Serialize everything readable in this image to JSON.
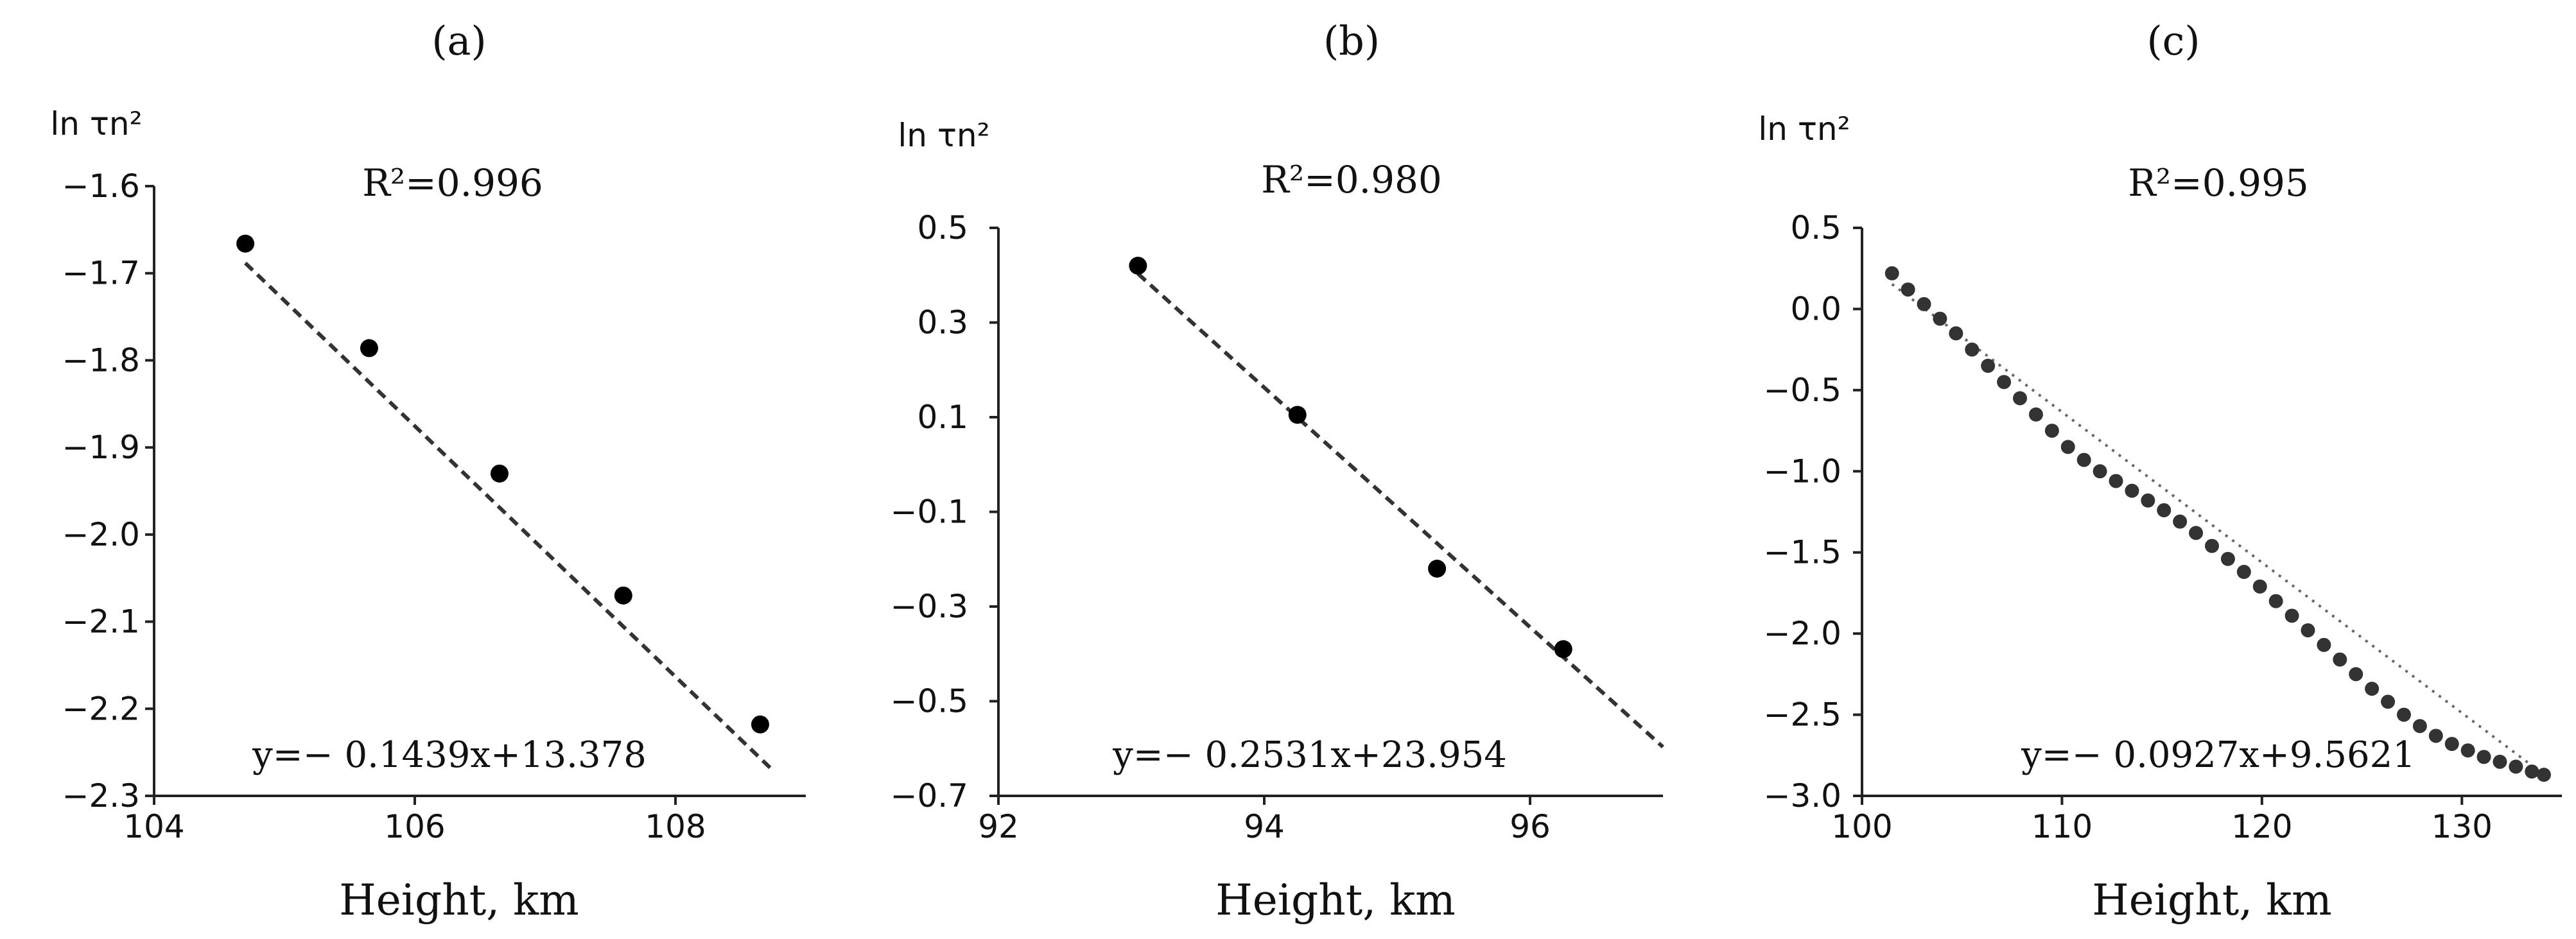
{
  "chart_data": [
    {
      "type": "scatter",
      "panel_label": "(a)",
      "xlabel": "Height, km",
      "ylabel": "ln τn²",
      "xlim": [
        104,
        109
      ],
      "ylim": [
        -2.3,
        -1.6
      ],
      "x_ticks": [
        104,
        106,
        108
      ],
      "x_tick_labels": [
        "104",
        "106",
        "108"
      ],
      "y_ticks": [
        -1.6,
        -1.7,
        -1.8,
        -1.9,
        -2.0,
        -2.1,
        -2.2,
        -2.3
      ],
      "y_tick_labels": [
        "−1.6",
        "−1.7",
        "−1.8",
        "−1.9",
        "−2.0",
        "−2.1",
        "−2.2",
        "−2.3"
      ],
      "points": [
        {
          "x": 104.7,
          "y": -1.666
        },
        {
          "x": 105.65,
          "y": -1.786
        },
        {
          "x": 106.65,
          "y": -1.93
        },
        {
          "x": 107.6,
          "y": -2.07
        },
        {
          "x": 108.65,
          "y": -2.218
        }
      ],
      "fit": {
        "slope": -0.1439,
        "intercept": 13.378,
        "x_range": [
          104.7,
          108.75
        ],
        "style": "dashed"
      },
      "r2_text": "R²=0.996",
      "equation_text": "y=− 0.1439x+13.378"
    },
    {
      "type": "scatter",
      "panel_label": "(b)",
      "xlabel": "Height, km",
      "ylabel": "ln τn²",
      "xlim": [
        92,
        97
      ],
      "ylim": [
        -0.7,
        0.5
      ],
      "x_ticks": [
        92,
        94,
        96
      ],
      "x_tick_labels": [
        "92",
        "94",
        "96"
      ],
      "y_ticks": [
        0.5,
        0.3,
        0.1,
        -0.1,
        -0.3,
        -0.5,
        -0.7
      ],
      "y_tick_labels": [
        "0.5",
        "0.3",
        "0.1",
        "−0.1",
        "−0.3",
        "−0.5",
        "−0.7"
      ],
      "points": [
        {
          "x": 93.05,
          "y": 0.42
        },
        {
          "x": 94.25,
          "y": 0.105
        },
        {
          "x": 95.3,
          "y": -0.22
        },
        {
          "x": 96.25,
          "y": -0.39
        }
      ],
      "fit": {
        "slope": -0.2531,
        "intercept": 23.954,
        "x_range": [
          93.05,
          97.0
        ],
        "style": "dashed"
      },
      "r2_text": "R²=0.980",
      "equation_text": "y=− 0.2531x+23.954"
    },
    {
      "type": "scatter",
      "panel_label": "(c)",
      "xlabel": "Height, km",
      "ylabel": "ln τn²",
      "xlim": [
        100,
        135
      ],
      "ylim": [
        -3.0,
        0.5
      ],
      "x_ticks": [
        100,
        110,
        120,
        130
      ],
      "x_tick_labels": [
        "100",
        "110",
        "120",
        "130"
      ],
      "y_ticks": [
        0.5,
        0.0,
        -0.5,
        -1.0,
        -1.5,
        -2.0,
        -2.5,
        -3.0
      ],
      "y_tick_labels": [
        "0.5",
        "0.0",
        "−0.5",
        "−1.0",
        "−1.5",
        "−2.0",
        "−2.5",
        "−3.0"
      ],
      "points": [
        {
          "x": 101.5,
          "y": 0.22
        },
        {
          "x": 102.3,
          "y": 0.12
        },
        {
          "x": 103.1,
          "y": 0.03
        },
        {
          "x": 103.9,
          "y": -0.06
        },
        {
          "x": 104.7,
          "y": -0.15
        },
        {
          "x": 105.5,
          "y": -0.25
        },
        {
          "x": 106.3,
          "y": -0.35
        },
        {
          "x": 107.1,
          "y": -0.45
        },
        {
          "x": 107.9,
          "y": -0.55
        },
        {
          "x": 108.7,
          "y": -0.65
        },
        {
          "x": 109.5,
          "y": -0.75
        },
        {
          "x": 110.3,
          "y": -0.85
        },
        {
          "x": 111.1,
          "y": -0.93
        },
        {
          "x": 111.9,
          "y": -1.0
        },
        {
          "x": 112.7,
          "y": -1.06
        },
        {
          "x": 113.5,
          "y": -1.12
        },
        {
          "x": 114.3,
          "y": -1.18
        },
        {
          "x": 115.1,
          "y": -1.24
        },
        {
          "x": 115.9,
          "y": -1.31
        },
        {
          "x": 116.7,
          "y": -1.38
        },
        {
          "x": 117.5,
          "y": -1.46
        },
        {
          "x": 118.3,
          "y": -1.54
        },
        {
          "x": 119.1,
          "y": -1.62
        },
        {
          "x": 119.9,
          "y": -1.71
        },
        {
          "x": 120.7,
          "y": -1.8
        },
        {
          "x": 121.5,
          "y": -1.89
        },
        {
          "x": 122.3,
          "y": -1.98
        },
        {
          "x": 123.1,
          "y": -2.07
        },
        {
          "x": 123.9,
          "y": -2.16
        },
        {
          "x": 124.7,
          "y": -2.25
        },
        {
          "x": 125.5,
          "y": -2.34
        },
        {
          "x": 126.3,
          "y": -2.42
        },
        {
          "x": 127.1,
          "y": -2.5
        },
        {
          "x": 127.9,
          "y": -2.57
        },
        {
          "x": 128.7,
          "y": -2.63
        },
        {
          "x": 129.5,
          "y": -2.68
        },
        {
          "x": 130.3,
          "y": -2.72
        },
        {
          "x": 131.1,
          "y": -2.76
        },
        {
          "x": 131.9,
          "y": -2.79
        },
        {
          "x": 132.7,
          "y": -2.82
        },
        {
          "x": 133.5,
          "y": -2.85
        },
        {
          "x": 134.1,
          "y": -2.87
        }
      ],
      "fit": {
        "slope": -0.0927,
        "intercept": 9.5621,
        "x_range": [
          101.5,
          134.5
        ],
        "style": "dotted"
      },
      "r2_text": "R²=0.995",
      "equation_text": "y=− 0.0927x+9.5621"
    }
  ]
}
